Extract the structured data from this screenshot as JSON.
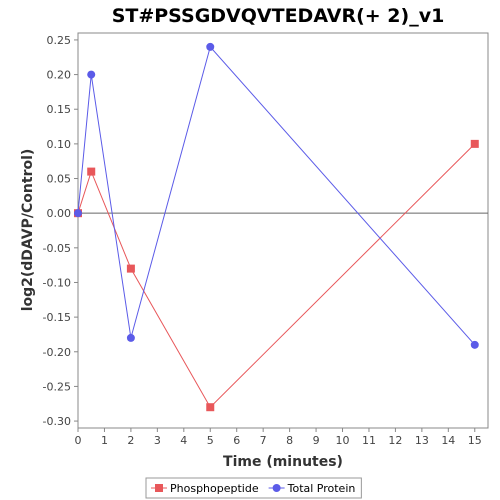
{
  "chart_data": {
    "type": "line",
    "title": "ST#PSSGDVQVTEDAVR(+ 2)_v1",
    "xlabel": "Time (minutes)",
    "ylabel": "log2(dDAVP/Control)",
    "xlim": [
      0,
      15.5
    ],
    "ylim": [
      -0.31,
      0.26
    ],
    "x_ticks": [
      0,
      1,
      2,
      3,
      4,
      5,
      6,
      7,
      8,
      9,
      10,
      11,
      12,
      13,
      14,
      15
    ],
    "y_ticks": [
      0.25,
      0.2,
      0.15,
      0.1,
      0.05,
      0.0,
      -0.05,
      -0.1,
      -0.15,
      -0.2,
      -0.25,
      -0.3
    ],
    "y_tick_labels": [
      "0.25",
      "0.20",
      "0.15",
      "0.10",
      "0.05",
      "0.00",
      "-0.05",
      "-0.10",
      "-0.15",
      "-0.20",
      "-0.25",
      "-0.30"
    ],
    "grid": false,
    "zero_line": true,
    "legend_position": "bottom",
    "series": [
      {
        "name": "Phosphopeptide",
        "color": "#e8575a",
        "marker": "square",
        "x": [
          0,
          0.5,
          2,
          5,
          15
        ],
        "y": [
          0.0,
          0.06,
          -0.08,
          -0.28,
          0.1
        ]
      },
      {
        "name": "Total Protein",
        "color": "#5b5be8",
        "marker": "circle",
        "x": [
          0,
          0.5,
          2,
          5,
          15
        ],
        "y": [
          0.0,
          0.2,
          -0.18,
          0.24,
          -0.19
        ]
      }
    ]
  }
}
